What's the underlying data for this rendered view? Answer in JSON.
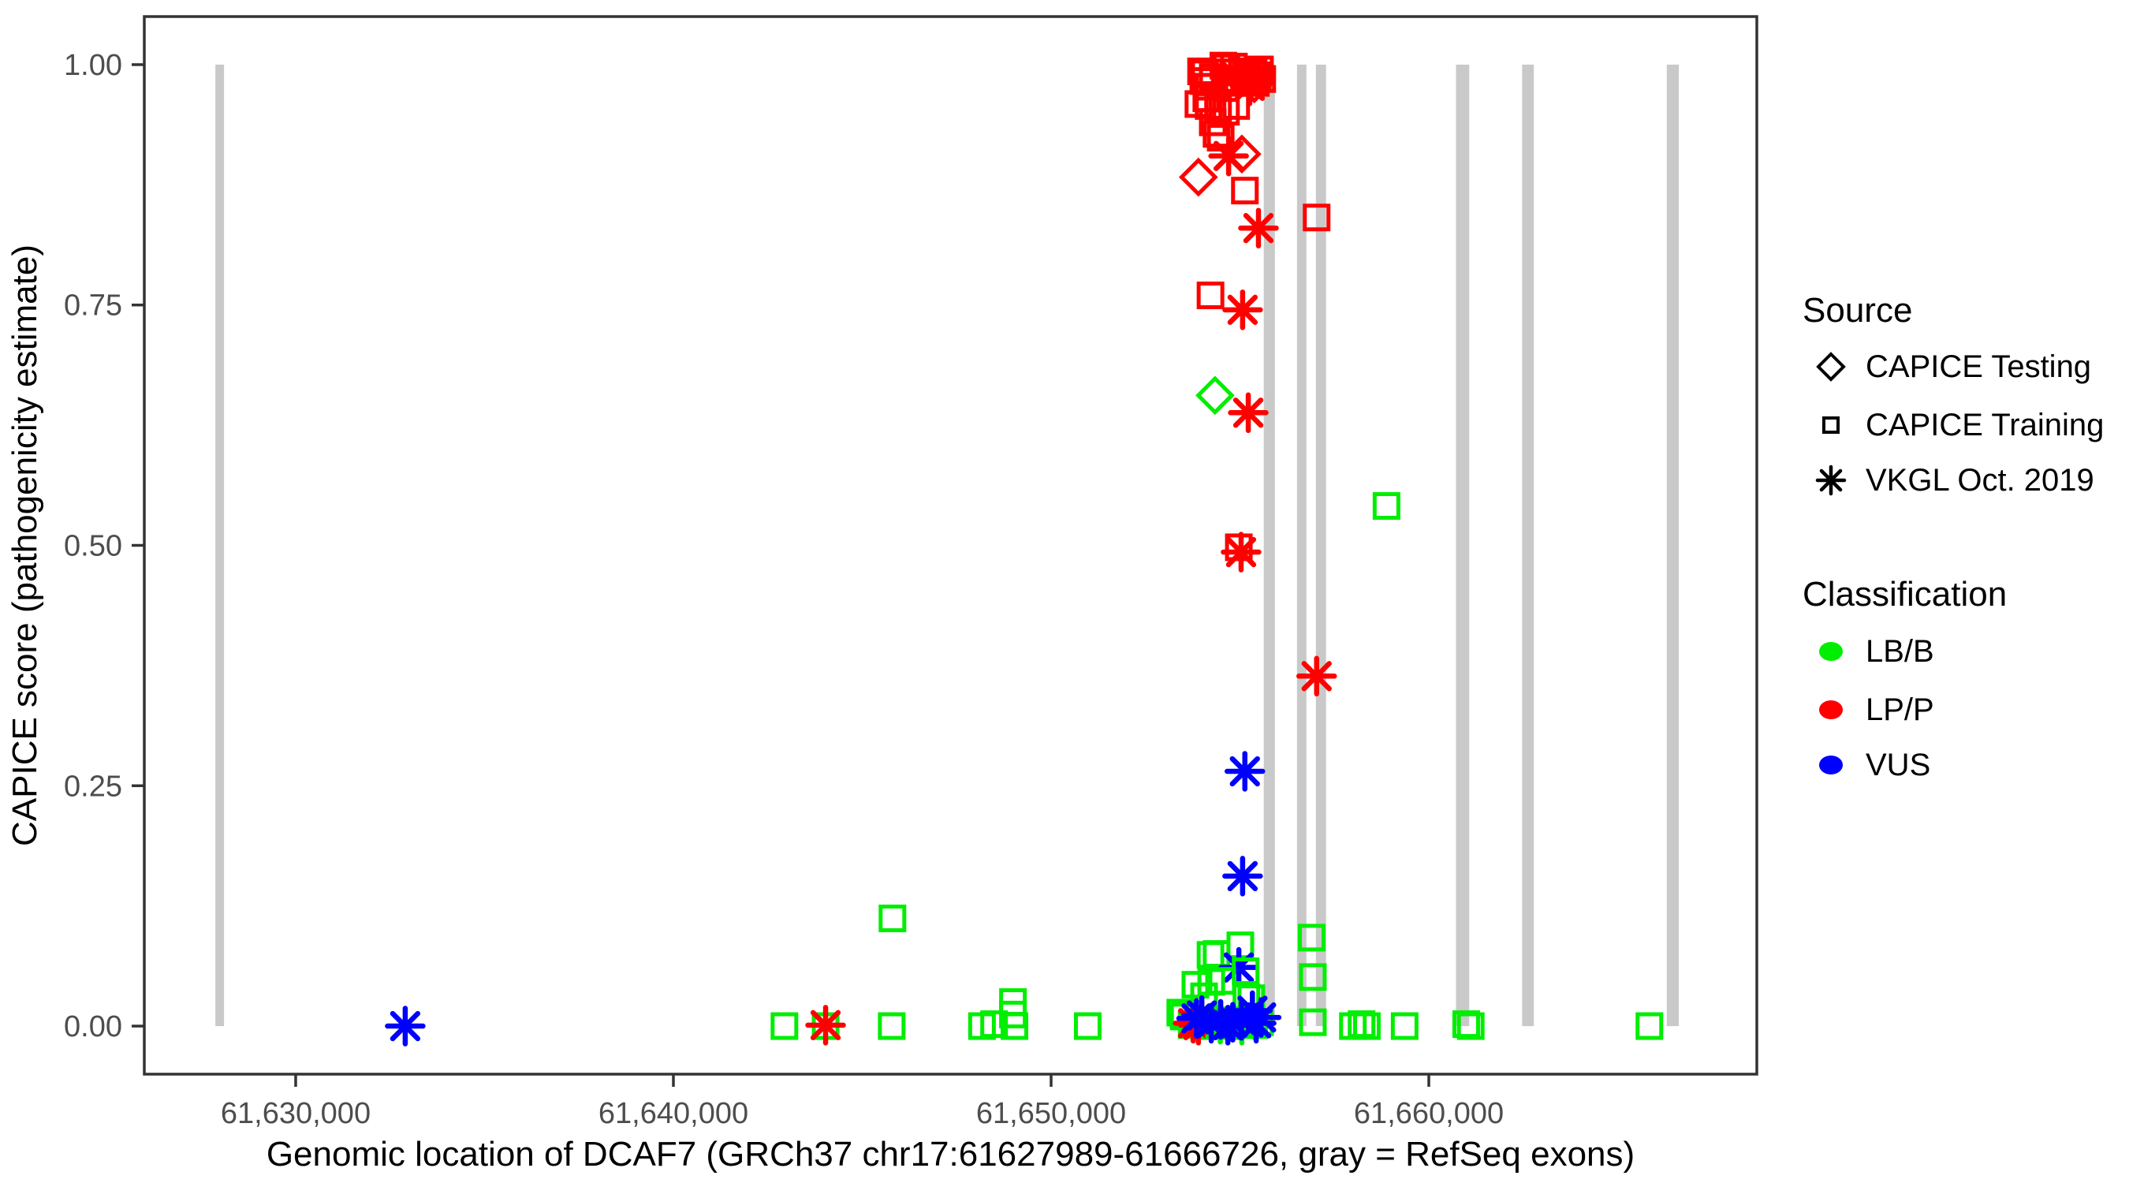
{
  "figure": {
    "kind": "ggplot-style scatter plot",
    "background": "#ffffff"
  },
  "chart_data": {
    "type": "scatter",
    "title": "",
    "xlabel": "Genomic location of DCAF7 (GRCh37 chr17:61627989-61666726, gray = RefSeq exons)",
    "ylabel": "CAPICE score (pathogenicity estimate)",
    "xlim": [
      61625992,
      61668684
    ],
    "ylim": [
      -0.05,
      1.05
    ],
    "grid": false,
    "x_ticks": [
      {
        "value": 61630000,
        "label": "61,630,000"
      },
      {
        "value": 61640000,
        "label": "61,640,000"
      },
      {
        "value": 61650000,
        "label": "61,650,000"
      },
      {
        "value": 61660000,
        "label": "61,660,000"
      }
    ],
    "y_ticks": [
      {
        "value": 0.0,
        "label": "0.00"
      },
      {
        "value": 0.25,
        "label": "0.25"
      },
      {
        "value": 0.5,
        "label": "0.50"
      },
      {
        "value": 0.75,
        "label": "0.75"
      },
      {
        "value": 1.0,
        "label": "1.00"
      }
    ],
    "colors": {
      "LB/B": "#00ee00",
      "LP/P": "#ff0000",
      "VUS": "#0000ff",
      "exon": "#c9c9c9",
      "axis": "#333333",
      "tick_label": "#4d4d4d",
      "title": "#000000"
    },
    "shape_by_source": {
      "CAPICE Testing": "diamond",
      "CAPICE Training": "square",
      "VKGL Oct. 2019": "asterisk"
    },
    "exons_note": "gray bars = RefSeq exons, drawn from score 0 to 1",
    "exons": [
      [
        61627874,
        61628103
      ],
      [
        61655630,
        61655925
      ],
      [
        61656510,
        61656760
      ],
      [
        61657010,
        61657280
      ],
      [
        61660720,
        61661070
      ],
      [
        61662470,
        61662780
      ],
      [
        61666300,
        61666620
      ]
    ],
    "points": [
      {
        "x": 61653970,
        "y": 0.993,
        "shape": "square",
        "cls": "LP/P"
      },
      {
        "x": 61654070,
        "y": 0.991,
        "shape": "square",
        "cls": "LP/P"
      },
      {
        "x": 61654030,
        "y": 0.983,
        "shape": "square",
        "cls": "LP/P"
      },
      {
        "x": 61654280,
        "y": 0.987,
        "shape": "square",
        "cls": "LP/P"
      },
      {
        "x": 61654170,
        "y": 0.977,
        "shape": "square",
        "cls": "LP/P"
      },
      {
        "x": 61654560,
        "y": 0.999,
        "shape": "square",
        "cls": "LP/P"
      },
      {
        "x": 61654640,
        "y": 0.997,
        "shape": "square",
        "cls": "LP/P"
      },
      {
        "x": 61654840,
        "y": 0.998,
        "shape": "square",
        "cls": "LP/P"
      },
      {
        "x": 61655050,
        "y": 0.993,
        "shape": "square",
        "cls": "LP/P"
      },
      {
        "x": 61655170,
        "y": 0.992,
        "shape": "square",
        "cls": "LP/P"
      },
      {
        "x": 61655360,
        "y": 0.991,
        "shape": "square",
        "cls": "LP/P"
      },
      {
        "x": 61655470,
        "y": 0.989,
        "shape": "square",
        "cls": "LP/P"
      },
      {
        "x": 61655110,
        "y": 0.984,
        "shape": "square",
        "cls": "LP/P"
      },
      {
        "x": 61655260,
        "y": 0.981,
        "shape": "square",
        "cls": "LP/P"
      },
      {
        "x": 61655420,
        "y": 0.981,
        "shape": "square",
        "cls": "LP/P"
      },
      {
        "x": 61654700,
        "y": 0.992,
        "shape": "square",
        "cls": "LP/P"
      },
      {
        "x": 61654800,
        "y": 0.985,
        "shape": "square",
        "cls": "LP/P"
      },
      {
        "x": 61654950,
        "y": 0.981,
        "shape": "square",
        "cls": "LP/P"
      },
      {
        "x": 61655530,
        "y": 0.995,
        "shape": "square",
        "cls": "LP/P"
      },
      {
        "x": 61655590,
        "y": 0.985,
        "shape": "square",
        "cls": "LP/P"
      },
      {
        "x": 61654110,
        "y": 0.965,
        "shape": "square",
        "cls": "LP/P"
      },
      {
        "x": 61653900,
        "y": 0.959,
        "shape": "square",
        "cls": "LP/P"
      },
      {
        "x": 61654170,
        "y": 0.957,
        "shape": "square",
        "cls": "LP/P"
      },
      {
        "x": 61654420,
        "y": 0.954,
        "shape": "square",
        "cls": "LP/P"
      },
      {
        "x": 61654630,
        "y": 0.951,
        "shape": "square",
        "cls": "LP/P"
      },
      {
        "x": 61654900,
        "y": 0.957,
        "shape": "square",
        "cls": "LP/P"
      },
      {
        "x": 61654280,
        "y": 0.94,
        "shape": "square",
        "cls": "LP/P"
      },
      {
        "x": 61654380,
        "y": 0.928,
        "shape": "square",
        "cls": "LP/P"
      },
      {
        "x": 61654490,
        "y": 0.924,
        "shape": "square",
        "cls": "LP/P"
      },
      {
        "x": 61655380,
        "y": 0.98,
        "shape": "diamond",
        "cls": "LP/P"
      },
      {
        "x": 61655180,
        "y": 0.987,
        "shape": "diamond",
        "cls": "LP/P"
      },
      {
        "x": 61654860,
        "y": 0.989,
        "shape": "asterisk",
        "cls": "LP/P"
      },
      {
        "x": 61655260,
        "y": 0.978,
        "shape": "asterisk",
        "cls": "LP/P"
      },
      {
        "x": 61655050,
        "y": 0.907,
        "shape": "diamond",
        "cls": "LP/P"
      },
      {
        "x": 61654700,
        "y": 0.905,
        "shape": "asterisk",
        "cls": "LP/P"
      },
      {
        "x": 61653900,
        "y": 0.883,
        "shape": "diamond",
        "cls": "LP/P"
      },
      {
        "x": 61655130,
        "y": 0.869,
        "shape": "square",
        "cls": "LP/P"
      },
      {
        "x": 61655490,
        "y": 0.83,
        "shape": "asterisk",
        "cls": "LP/P"
      },
      {
        "x": 61657030,
        "y": 0.841,
        "shape": "square",
        "cls": "LP/P"
      },
      {
        "x": 61654220,
        "y": 0.76,
        "shape": "square",
        "cls": "LP/P"
      },
      {
        "x": 61655070,
        "y": 0.745,
        "shape": "asterisk",
        "cls": "LP/P"
      },
      {
        "x": 61654340,
        "y": 0.656,
        "shape": "diamond",
        "cls": "LB/B"
      },
      {
        "x": 61655220,
        "y": 0.638,
        "shape": "asterisk",
        "cls": "LP/P"
      },
      {
        "x": 61658880,
        "y": 0.541,
        "shape": "square",
        "cls": "LB/B"
      },
      {
        "x": 61654970,
        "y": 0.498,
        "shape": "square",
        "cls": "LP/P"
      },
      {
        "x": 61655030,
        "y": 0.493,
        "shape": "asterisk",
        "cls": "LP/P"
      },
      {
        "x": 61657030,
        "y": 0.364,
        "shape": "asterisk",
        "cls": "LP/P"
      },
      {
        "x": 61655130,
        "y": 0.265,
        "shape": "asterisk",
        "cls": "VUS"
      },
      {
        "x": 61655070,
        "y": 0.156,
        "shape": "asterisk",
        "cls": "VUS"
      },
      {
        "x": 61645800,
        "y": 0.112,
        "shape": "square",
        "cls": "LB/B"
      },
      {
        "x": 61656900,
        "y": 0.092,
        "shape": "square",
        "cls": "LB/B"
      },
      {
        "x": 61655010,
        "y": 0.084,
        "shape": "square",
        "cls": "LB/B"
      },
      {
        "x": 61654220,
        "y": 0.074,
        "shape": "square",
        "cls": "LB/B"
      },
      {
        "x": 61654380,
        "y": 0.075,
        "shape": "square",
        "cls": "LB/B"
      },
      {
        "x": 61654970,
        "y": 0.061,
        "shape": "asterisk",
        "cls": "VUS"
      },
      {
        "x": 61655150,
        "y": 0.057,
        "shape": "square",
        "cls": "LB/B"
      },
      {
        "x": 61656930,
        "y": 0.051,
        "shape": "square",
        "cls": "LB/B"
      },
      {
        "x": 61653820,
        "y": 0.043,
        "shape": "square",
        "cls": "LB/B"
      },
      {
        "x": 61654240,
        "y": 0.046,
        "shape": "square",
        "cls": "LB/B"
      },
      {
        "x": 61654530,
        "y": 0.047,
        "shape": "square",
        "cls": "LB/B"
      },
      {
        "x": 61654050,
        "y": 0.031,
        "shape": "square",
        "cls": "LB/B"
      },
      {
        "x": 61655170,
        "y": 0.03,
        "shape": "square",
        "cls": "LB/B"
      },
      {
        "x": 61655300,
        "y": 0.029,
        "shape": "square",
        "cls": "LB/B"
      },
      {
        "x": 61648990,
        "y": 0.025,
        "shape": "square",
        "cls": "LB/B"
      },
      {
        "x": 61648990,
        "y": 0.012,
        "shape": "square",
        "cls": "LB/B"
      },
      {
        "x": 61649030,
        "y": 0.0,
        "shape": "square",
        "cls": "LB/B"
      },
      {
        "x": 61653510,
        "y": 0.01,
        "shape": "square",
        "cls": "LB/B"
      },
      {
        "x": 61653420,
        "y": 0.014,
        "shape": "square",
        "cls": "LB/B"
      },
      {
        "x": 61632900,
        "y": 0.0,
        "shape": "asterisk",
        "cls": "VUS"
      },
      {
        "x": 61642940,
        "y": 0.0,
        "shape": "square",
        "cls": "LB/B"
      },
      {
        "x": 61644030,
        "y": 0.0,
        "shape": "square",
        "cls": "LB/B"
      },
      {
        "x": 61644030,
        "y": 0.001,
        "shape": "asterisk",
        "cls": "LP/P"
      },
      {
        "x": 61645780,
        "y": 0.0,
        "shape": "square",
        "cls": "LB/B"
      },
      {
        "x": 61648170,
        "y": 0.0,
        "shape": "square",
        "cls": "LB/B"
      },
      {
        "x": 61648490,
        "y": 0.002,
        "shape": "square",
        "cls": "LB/B"
      },
      {
        "x": 61650970,
        "y": 0.0,
        "shape": "square",
        "cls": "LB/B"
      },
      {
        "x": 61653720,
        "y": 0.001,
        "shape": "square",
        "cls": "LB/B"
      },
      {
        "x": 61653930,
        "y": 0.004,
        "shape": "square",
        "cls": "LB/B"
      },
      {
        "x": 61654130,
        "y": 0.0,
        "shape": "square",
        "cls": "LB/B"
      },
      {
        "x": 61654280,
        "y": 0.006,
        "shape": "square",
        "cls": "LB/B"
      },
      {
        "x": 61654450,
        "y": 0.001,
        "shape": "square",
        "cls": "LB/B"
      },
      {
        "x": 61654590,
        "y": 0.005,
        "shape": "square",
        "cls": "LB/B"
      },
      {
        "x": 61654760,
        "y": 0.0,
        "shape": "square",
        "cls": "LB/B"
      },
      {
        "x": 61654930,
        "y": 0.004,
        "shape": "square",
        "cls": "LB/B"
      },
      {
        "x": 61655070,
        "y": 0.002,
        "shape": "square",
        "cls": "LB/B"
      },
      {
        "x": 61655240,
        "y": 0.006,
        "shape": "square",
        "cls": "LB/B"
      },
      {
        "x": 61655380,
        "y": 0.001,
        "shape": "square",
        "cls": "LB/B"
      },
      {
        "x": 61655530,
        "y": 0.004,
        "shape": "square",
        "cls": "LB/B"
      },
      {
        "x": 61653760,
        "y": 0.003,
        "shape": "asterisk",
        "cls": "LP/P"
      },
      {
        "x": 61653900,
        "y": 0.001,
        "shape": "asterisk",
        "cls": "LP/P"
      },
      {
        "x": 61655050,
        "y": 0.001,
        "shape": "asterisk",
        "cls": "LB/B"
      },
      {
        "x": 61654480,
        "y": 0.002,
        "shape": "asterisk",
        "cls": "LB/B"
      },
      {
        "x": 61653850,
        "y": 0.008,
        "shape": "asterisk",
        "cls": "VUS"
      },
      {
        "x": 61653990,
        "y": 0.011,
        "shape": "asterisk",
        "cls": "VUS"
      },
      {
        "x": 61654240,
        "y": 0.003,
        "shape": "asterisk",
        "cls": "VUS"
      },
      {
        "x": 61654490,
        "y": 0.007,
        "shape": "asterisk",
        "cls": "VUS"
      },
      {
        "x": 61654680,
        "y": 0.001,
        "shape": "asterisk",
        "cls": "VUS"
      },
      {
        "x": 61654810,
        "y": 0.004,
        "shape": "asterisk",
        "cls": "VUS"
      },
      {
        "x": 61655040,
        "y": 0.006,
        "shape": "asterisk",
        "cls": "VUS"
      },
      {
        "x": 61655330,
        "y": 0.016,
        "shape": "asterisk",
        "cls": "VUS"
      },
      {
        "x": 61655430,
        "y": 0.003,
        "shape": "asterisk",
        "cls": "VUS"
      },
      {
        "x": 61655560,
        "y": 0.009,
        "shape": "asterisk",
        "cls": "VUS"
      },
      {
        "x": 61656930,
        "y": 0.004,
        "shape": "square",
        "cls": "LB/B"
      },
      {
        "x": 61657990,
        "y": 0.0,
        "shape": "square",
        "cls": "LB/B"
      },
      {
        "x": 61658220,
        "y": 0.002,
        "shape": "square",
        "cls": "LB/B"
      },
      {
        "x": 61658360,
        "y": 0.0,
        "shape": "square",
        "cls": "LB/B"
      },
      {
        "x": 61659360,
        "y": 0.0,
        "shape": "square",
        "cls": "LB/B"
      },
      {
        "x": 61660990,
        "y": 0.002,
        "shape": "square",
        "cls": "LB/B"
      },
      {
        "x": 61661110,
        "y": 0.0,
        "shape": "square",
        "cls": "LB/B"
      },
      {
        "x": 61665840,
        "y": 0.0,
        "shape": "square",
        "cls": "LB/B"
      }
    ],
    "legend": {
      "source": {
        "title": "Source",
        "items": [
          {
            "label": "CAPICE Testing",
            "shape": "diamond"
          },
          {
            "label": "CAPICE Training",
            "shape": "square"
          },
          {
            "label": "VKGL Oct. 2019",
            "shape": "asterisk"
          }
        ]
      },
      "classification": {
        "title": "Classification",
        "items": [
          {
            "label": "LB/B",
            "color": "#00ee00"
          },
          {
            "label": "LP/P",
            "color": "#ff0000"
          },
          {
            "label": "VUS",
            "color": "#0000ff"
          }
        ]
      }
    }
  }
}
